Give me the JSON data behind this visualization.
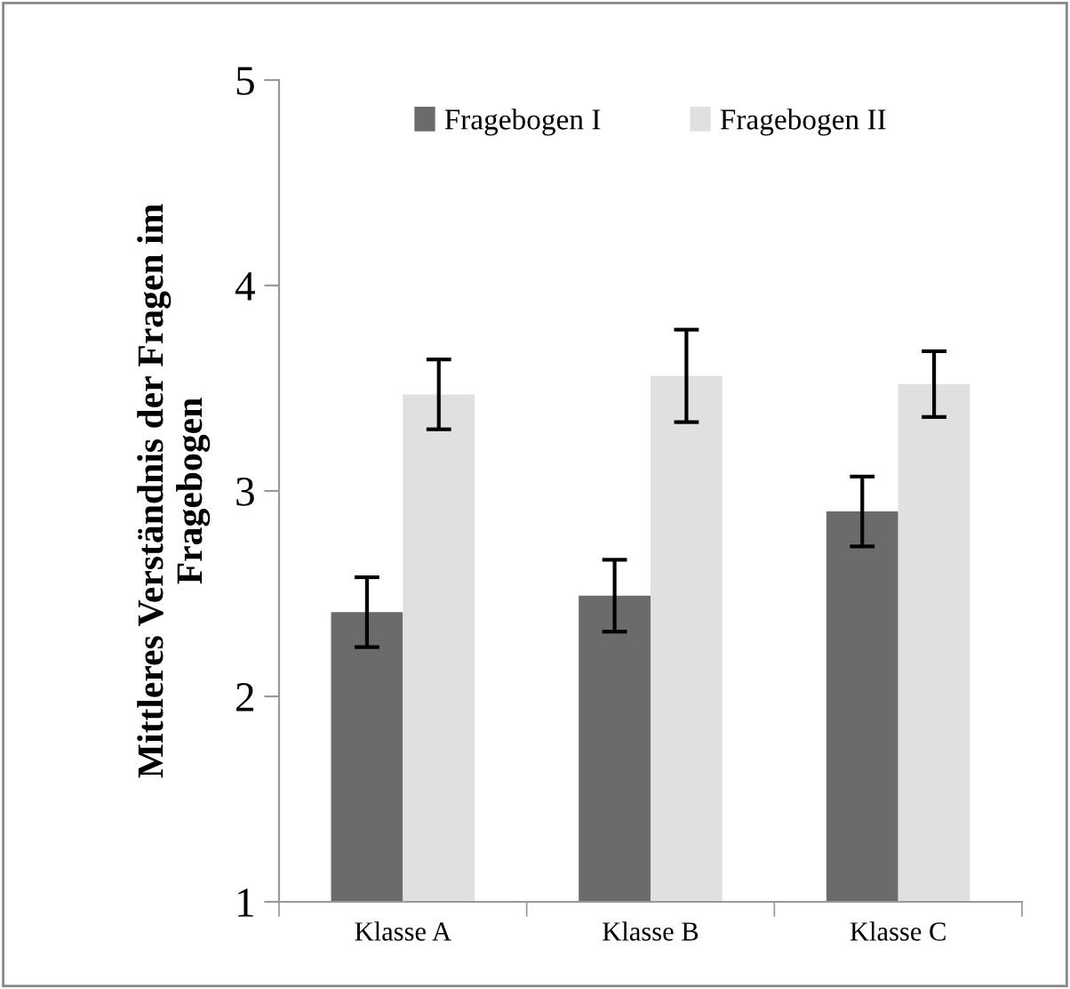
{
  "chart_data": {
    "type": "bar",
    "ylabel": "Mittleres Verständnis der Fragen im\nFragebogen",
    "categories": [
      "Klasse A",
      "Klasse B",
      "Klasse C"
    ],
    "series": [
      {
        "name": "Fragebogen I",
        "color": "#6b6b6b",
        "values": [
          2.41,
          2.49,
          2.9
        ],
        "errors": [
          0.17,
          0.175,
          0.17
        ]
      },
      {
        "name": "Fragebogen II",
        "color": "#e0e0e0",
        "values": [
          3.47,
          3.56,
          3.52
        ],
        "errors": [
          0.17,
          0.225,
          0.16
        ]
      }
    ],
    "ylim": [
      1,
      5
    ],
    "yticks": [
      1,
      2,
      3,
      4,
      5
    ],
    "grid": false,
    "legend": "top"
  }
}
